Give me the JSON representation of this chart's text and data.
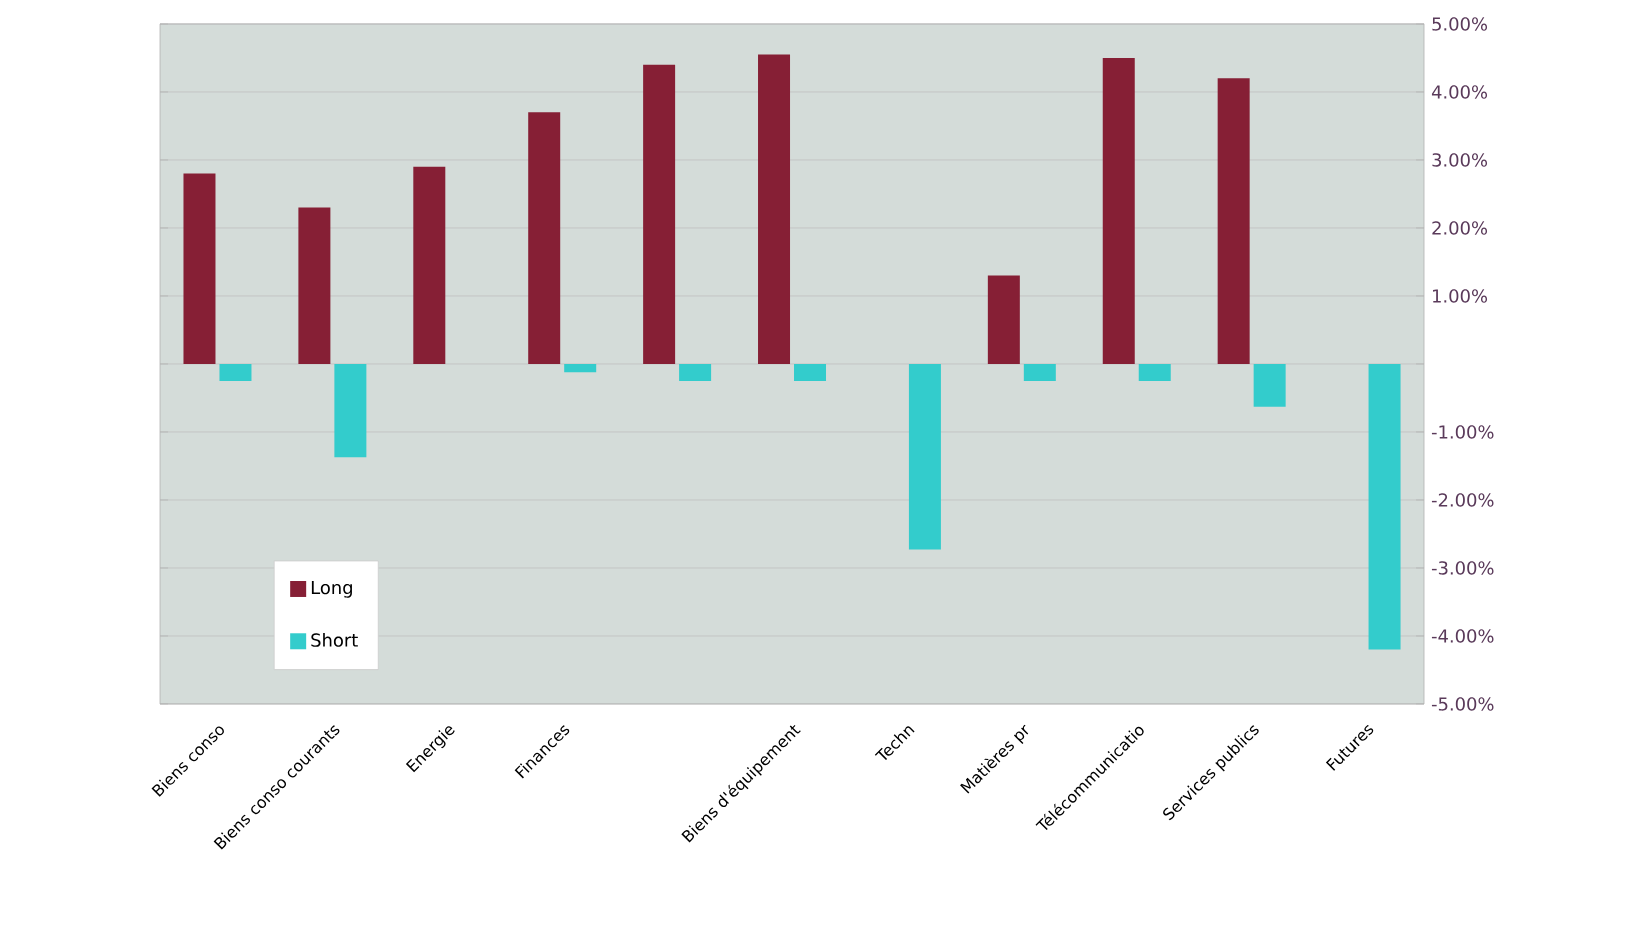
{
  "chart_data": {
    "type": "bar",
    "categories": [
      "Biens conso",
      "Biens conso courants",
      "Energie",
      "Finances",
      null,
      "Biens d'équipement",
      "Techn",
      "Matières pr",
      "Télécommunicatio",
      "Services publics",
      "Futures"
    ],
    "series": [
      {
        "name": "Long",
        "color": "#861f35",
        "values": [
          2.8,
          2.3,
          2.9,
          3.7,
          4.4,
          4.55,
          null,
          1.3,
          4.5,
          4.2,
          null
        ]
      },
      {
        "name": "Short",
        "color": "#33cccc",
        "values": [
          -0.25,
          -1.37,
          null,
          -0.12,
          -0.25,
          -0.25,
          -2.73,
          -0.25,
          -0.25,
          -0.63,
          -4.2
        ]
      }
    ],
    "ylim": [
      -5,
      5
    ],
    "yticks": [
      {
        "value": -5,
        "label": "-5.00%"
      },
      {
        "value": -4,
        "label": "-4.00%"
      },
      {
        "value": -3,
        "label": "-3.00%"
      },
      {
        "value": -2,
        "label": "-2.00%"
      },
      {
        "value": -1,
        "label": "-1.00%"
      },
      {
        "value": 0,
        "label": null
      },
      {
        "value": 1,
        "label": "1.00%"
      },
      {
        "value": 2,
        "label": "2.00%"
      },
      {
        "value": 3,
        "label": "3.00%"
      },
      {
        "value": 4,
        "label": "4.00%"
      },
      {
        "value": 5,
        "label": "5.00%"
      }
    ],
    "grid": "y",
    "legend": "bottom left"
  }
}
